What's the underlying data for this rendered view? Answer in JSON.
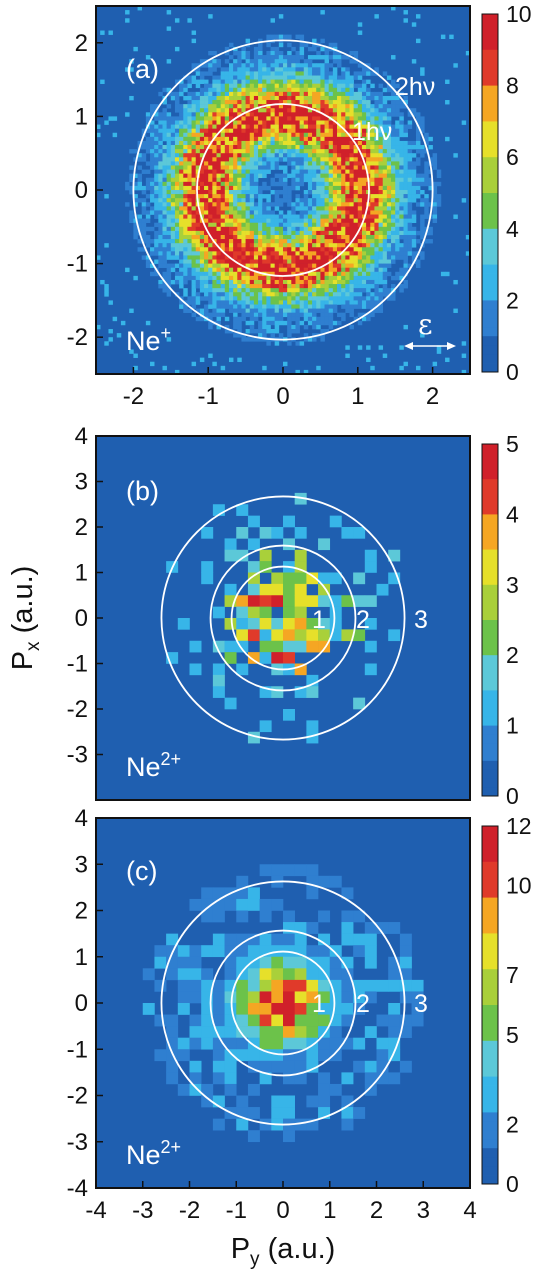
{
  "chart_data": [
    {
      "type": "heatmap",
      "panel_label": "(a)",
      "ion": "Ne",
      "ion_charge": "+",
      "xlim": [
        -2.5,
        2.5
      ],
      "ylim": [
        -2.5,
        2.5
      ],
      "x_ticks": [
        "-2",
        "-1",
        "0",
        "1",
        "2"
      ],
      "y_ticks": [
        "-2",
        "-1",
        "0",
        "1",
        "2"
      ],
      "x_tick_values": [
        -2,
        -1,
        0,
        1,
        2
      ],
      "y_tick_values": [
        -2,
        -1,
        0,
        1,
        2
      ],
      "colorbar": {
        "min": 0,
        "max": 10,
        "ticks": [
          "0",
          "2",
          "4",
          "6",
          "8",
          "10"
        ],
        "tick_values": [
          0,
          2,
          4,
          6,
          8,
          10
        ]
      },
      "rings": [
        {
          "radius": 1.15,
          "label": "1hν"
        },
        {
          "radius": 2.0,
          "label": "2hν"
        }
      ],
      "polarization_label": "ε",
      "distribution": {
        "shape": "ring",
        "peak_radius": 1.05,
        "width": 0.45,
        "background": 0.6
      }
    },
    {
      "type": "heatmap",
      "panel_label": "(b)",
      "ion": "Ne",
      "ion_charge": "2+",
      "xlim": [
        -4,
        4
      ],
      "ylim": [
        -4,
        4
      ],
      "y_ticks": [
        "-3",
        "-2",
        "-1",
        "0",
        "1",
        "2",
        "3",
        "4"
      ],
      "y_tick_values": [
        -3,
        -2,
        -1,
        0,
        1,
        2,
        3,
        4
      ],
      "colorbar": {
        "min": 0,
        "max": 5,
        "ticks": [
          "0",
          "1",
          "2",
          "3",
          "4",
          "5"
        ],
        "tick_values": [
          0,
          1,
          2,
          3,
          4,
          5
        ]
      },
      "rings": [
        {
          "radius": 1.1,
          "label": "1"
        },
        {
          "radius": 1.55,
          "label": "2"
        },
        {
          "radius": 2.6,
          "label": "3"
        }
      ],
      "distribution": {
        "shape": "sparse",
        "peak_radius": 0.0,
        "width": 1.0,
        "background": 0.0
      }
    },
    {
      "type": "heatmap",
      "panel_label": "(c)",
      "ion": "Ne",
      "ion_charge": "2+",
      "xlim": [
        -4,
        4
      ],
      "ylim": [
        -4,
        4
      ],
      "x_ticks": [
        "-4",
        "-3",
        "-2",
        "-1",
        "0",
        "1",
        "2",
        "3",
        "4"
      ],
      "x_tick_values": [
        -4,
        -3,
        -2,
        -1,
        0,
        1,
        2,
        3,
        4
      ],
      "y_ticks": [
        "-4",
        "-3",
        "-2",
        "-1",
        "0",
        "1",
        "2",
        "3",
        "4"
      ],
      "y_tick_values": [
        -4,
        -3,
        -2,
        -1,
        0,
        1,
        2,
        3,
        4
      ],
      "colorbar": {
        "min": 0,
        "max": 12,
        "ticks": [
          "0",
          "2",
          "5",
          "7",
          "10",
          "12"
        ],
        "tick_values": [
          0,
          2,
          5,
          7,
          10,
          12
        ]
      },
      "rings": [
        {
          "radius": 1.1,
          "label": "1"
        },
        {
          "radius": 1.55,
          "label": "2"
        },
        {
          "radius": 2.6,
          "label": "3"
        }
      ],
      "distribution": {
        "shape": "center",
        "peak_radius": 0.0,
        "width": 1.0,
        "background": 0.3
      }
    }
  ],
  "axes": {
    "ylabel_main": "P",
    "ylabel_sub": "x",
    "ylabel_unit": " (a.u.)",
    "xlabel_main": "P",
    "xlabel_sub": "y",
    "xlabel_unit": " (a.u.)"
  },
  "colormap": [
    "#1f5fb0",
    "#2f7fd0",
    "#37b5e8",
    "#5cc8d8",
    "#6cc24a",
    "#a9d03a",
    "#e6e02a",
    "#f5a623",
    "#e03a2a",
    "#d0202a"
  ]
}
